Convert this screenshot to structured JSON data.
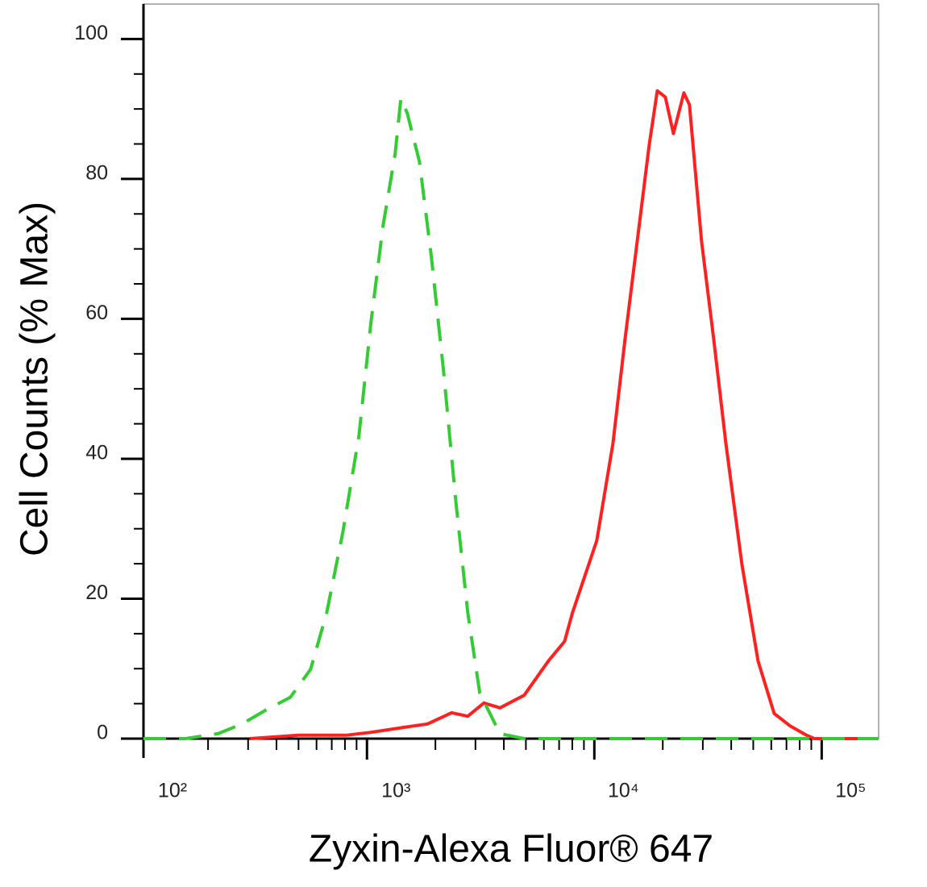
{
  "chart_data": {
    "type": "line",
    "x_label": "Zyxin-Alexa Fluor® 647",
    "y_label": "Cell Counts (% Max)",
    "xscale": "log",
    "xlim": [
      104,
      178000
    ],
    "ylim": [
      0,
      105
    ],
    "xticks": [
      {
        "value": 100,
        "label": "10²"
      },
      {
        "value": 1000,
        "label": "10³"
      },
      {
        "value": 10000,
        "label": "10⁴"
      },
      {
        "value": 100000,
        "label": "10⁵"
      }
    ],
    "xminorticks": [
      200,
      300,
      400,
      500,
      600,
      700,
      800,
      900,
      2000,
      3000,
      4000,
      5000,
      6000,
      7000,
      8000,
      9000,
      20000,
      30000,
      40000,
      50000,
      60000,
      70000,
      80000,
      90000
    ],
    "yticks": [
      0,
      20,
      40,
      60,
      80,
      100
    ],
    "yminorticks": [
      5,
      10,
      15,
      25,
      30,
      35,
      45,
      50,
      55,
      65,
      70,
      75,
      85,
      90,
      95
    ],
    "grid": false,
    "series": [
      {
        "color": "#ff2020",
        "style": "solid",
        "x": [
          306,
          500,
          815,
          1040,
          1445,
          1845,
          2357,
          2775,
          3268,
          3846,
          4914,
          6281,
          7396,
          8017,
          10250,
          12070,
          13650,
          15420,
          17420,
          18920,
          20530,
          22280,
          24770,
          26200,
          29630,
          33500,
          37880,
          44570,
          52480,
          61800,
          72780,
          85700,
          92900,
          178000
        ],
        "values": [
          0,
          0.5,
          0.5,
          0.9,
          1.6,
          2.1,
          3.7,
          3.2,
          5.1,
          4.4,
          6.2,
          11.1,
          13.9,
          18.0,
          28.3,
          42.2,
          57.1,
          71.0,
          84.8,
          92.6,
          91.7,
          86.5,
          92.3,
          90.6,
          71.0,
          57.1,
          42.2,
          24.9,
          11.1,
          3.6,
          1.8,
          0.5,
          0,
          0
        ]
      },
      {
        "color": "#33cc33",
        "style": "dashed",
        "x": [
          104,
          159,
          221,
          282,
          360,
          460,
          565,
          665,
          783,
          922,
          1040,
          1177,
          1330,
          1409,
          1504,
          1700,
          1922,
          2173,
          2455,
          2775,
          3135,
          3846,
          4914,
          178000
        ],
        "values": [
          0,
          0,
          0.7,
          2.1,
          4.1,
          5.9,
          9.9,
          18.0,
          29.5,
          43.3,
          59.4,
          73.3,
          83.6,
          91.5,
          89.4,
          82.5,
          68.7,
          52.5,
          34.1,
          18.0,
          6.5,
          0.7,
          0,
          0
        ]
      }
    ]
  }
}
